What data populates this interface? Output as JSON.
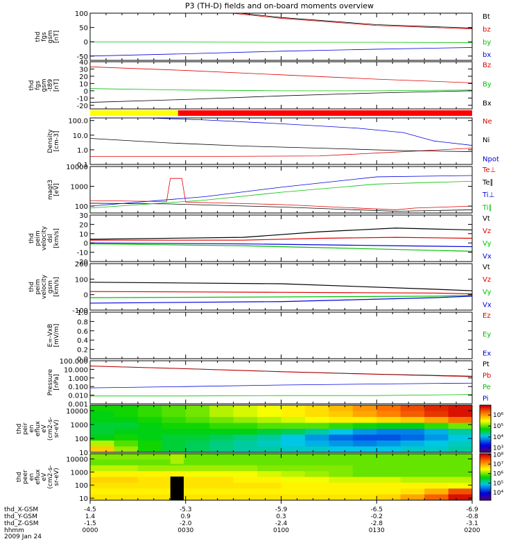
{
  "title": "P3 (TH-D) fields and on-board moments overview",
  "date": "2009 Jan 24",
  "time_axis": {
    "ticks": [
      "0000",
      "0030",
      "0100",
      "0130",
      "0200"
    ],
    "range_hhmm": [
      "0000",
      "0200"
    ]
  },
  "ephemeris": [
    {
      "label": "thd_X-GSM",
      "values": [
        "-4.5",
        "-5.3",
        "-5.9",
        "-6.5",
        "-6.9"
      ]
    },
    {
      "label": "thd_Y-GSM",
      "values": [
        "1.4",
        "0.9",
        "0.3",
        "-0.2",
        "-0.8"
      ]
    },
    {
      "label": "thd_Z-GSM",
      "values": [
        "-1.5",
        "-2.0",
        "-2.4",
        "-2.8",
        "-3.1"
      ]
    },
    {
      "label": "hhmm",
      "values": []
    }
  ],
  "colors": {
    "black": "#000000",
    "red": "#e00000",
    "green": "#00c000",
    "blue": "#0000e0"
  },
  "chart_data": [
    {
      "type": "line",
      "ylabel_lines": [
        "thd",
        "fgs",
        "gsm",
        "[nT]"
      ],
      "ylim": [
        -65,
        100
      ],
      "yticks": [
        -50,
        0,
        50,
        100
      ],
      "series": [
        {
          "name": "Bt",
          "color": "#000000",
          "x": [
            0,
            0.25,
            0.5,
            0.75,
            1.0
          ],
          "y": [
            160,
            120,
            85,
            60,
            48
          ]
        },
        {
          "name": "bz",
          "color": "#e00000",
          "x": [
            0,
            0.25,
            0.5,
            0.75,
            1.0
          ],
          "y": [
            155,
            117,
            82,
            57,
            45
          ]
        },
        {
          "name": "by",
          "color": "#00c000",
          "x": [
            0,
            0.25,
            0.5,
            0.75,
            1.0
          ],
          "y": [
            -1,
            -1,
            -2,
            -2,
            -3
          ]
        },
        {
          "name": "bx",
          "color": "#0000e0",
          "x": [
            0,
            0.25,
            0.5,
            0.75,
            1.0
          ],
          "y": [
            -50,
            -42,
            -33,
            -26,
            -20
          ]
        }
      ]
    },
    {
      "type": "line",
      "ylabel_lines": [
        "thd",
        "fgs",
        "gsm",
        "-t89",
        "[nT]"
      ],
      "ylim": [
        -25,
        40
      ],
      "yticks": [
        -20,
        -10,
        0,
        10,
        20,
        30,
        40
      ],
      "series": [
        {
          "name": "Bz",
          "color": "#e00000",
          "x": [
            0,
            0.1,
            0.25,
            0.5,
            0.75,
            1.0
          ],
          "y": [
            33,
            31,
            28,
            22,
            16,
            11
          ]
        },
        {
          "name": "By",
          "color": "#00c000",
          "x": [
            0,
            0.25,
            0.5,
            0.75,
            1.0
          ],
          "y": [
            3,
            1,
            0,
            0,
            1
          ]
        },
        {
          "name": "Bx",
          "color": "#000000",
          "x": [
            0,
            0.25,
            0.5,
            0.75,
            1.0
          ],
          "y": [
            -16,
            -12,
            -7,
            -3,
            0
          ]
        }
      ]
    },
    {
      "type": "bar",
      "ylabel_lines": [],
      "segments": [
        {
          "x": [
            0,
            0.23
          ],
          "color": "#ffff00"
        },
        {
          "x": [
            0.23,
            1.0
          ],
          "color": "#ff0000"
        }
      ]
    },
    {
      "type": "line",
      "ylabel_lines": [
        "Density",
        "[cm-3]"
      ],
      "log": true,
      "ylim": [
        0.1,
        150
      ],
      "yticks": [
        0.1,
        1.0,
        10.0,
        100.0
      ],
      "ytick_labels": [
        "0.1",
        "1.0",
        "10.0",
        "100.0"
      ],
      "series": [
        {
          "name": "Ne",
          "color": "#e00000",
          "x": [
            0,
            0.3,
            0.6,
            0.8,
            0.9,
            1.0
          ],
          "y": [
            0.35,
            0.35,
            0.38,
            0.7,
            0.95,
            1.3
          ]
        },
        {
          "name": "Ni",
          "color": "#000000",
          "x": [
            0,
            0.2,
            0.4,
            0.6,
            0.8,
            1.0
          ],
          "y": [
            6,
            3,
            1.8,
            1.3,
            0.9,
            0.75
          ]
        },
        {
          "name": "Npot",
          "color": "#0000e0",
          "x": [
            0.15,
            0.3,
            0.5,
            0.7,
            0.82,
            0.9,
            1.0
          ],
          "y": [
            150,
            110,
            60,
            30,
            15,
            4,
            2
          ]
        }
      ]
    },
    {
      "type": "line",
      "ylabel_lines": [
        "magt3",
        "[eV]"
      ],
      "log": true,
      "ylim": [
        45,
        10000
      ],
      "yticks": [
        100,
        1000,
        10000
      ],
      "ytick_labels": [
        "100",
        "1000",
        "10000"
      ],
      "series": [
        {
          "name": "Te⊥",
          "color": "#e00000",
          "x": [
            0,
            0.2,
            0.21,
            0.24,
            0.25,
            0.5,
            0.8,
            0.85,
            1.0
          ],
          "y": [
            190,
            170,
            2500,
            2500,
            160,
            120,
            65,
            80,
            100
          ]
        },
        {
          "name": "Te∥",
          "color": "#000000",
          "x": [
            0,
            0.2,
            0.5,
            0.8,
            1.0
          ],
          "y": [
            140,
            130,
            90,
            55,
            65
          ]
        },
        {
          "name": "Ti⊥",
          "color": "#0000e0",
          "x": [
            0,
            0.3,
            0.5,
            0.75,
            1.0
          ],
          "y": [
            100,
            300,
            900,
            3000,
            3500
          ]
        },
        {
          "name": "Ti∥",
          "color": "#00c000",
          "x": [
            0,
            0.3,
            0.5,
            0.75,
            1.0
          ],
          "y": [
            80,
            200,
            500,
            1300,
            1800
          ]
        }
      ]
    },
    {
      "type": "line",
      "ylabel_lines": [
        "thd",
        "peim",
        "velocity",
        "dsl",
        "[km/s]"
      ],
      "ylim": [
        -20,
        30
      ],
      "yticks": [
        -20,
        -10,
        0,
        10,
        20,
        30
      ],
      "series": [
        {
          "name": "Vt",
          "color": "#000000",
          "x": [
            0,
            0.4,
            0.6,
            0.8,
            1.0
          ],
          "y": [
            4,
            6,
            12,
            16,
            14
          ]
        },
        {
          "name": "Vz",
          "color": "#e00000",
          "x": [
            0,
            0.4,
            0.6,
            0.8,
            1.0
          ],
          "y": [
            3,
            3,
            5,
            6,
            5
          ]
        },
        {
          "name": "Vy",
          "color": "#00c000",
          "x": [
            0,
            0.4,
            0.6,
            0.8,
            1.0
          ],
          "y": [
            -1,
            -3,
            -5,
            -7,
            -9
          ]
        },
        {
          "name": "Vx",
          "color": "#0000e0",
          "x": [
            0,
            0.4,
            0.6,
            0.8,
            1.0
          ],
          "y": [
            0,
            -1,
            -2,
            -3,
            -4
          ]
        }
      ]
    },
    {
      "type": "line",
      "ylabel_lines": [
        "thd",
        "peim",
        "velocity",
        "gsm",
        "[km/s]"
      ],
      "ylim": [
        -100,
        200
      ],
      "yticks": [
        -100,
        0,
        100,
        200
      ],
      "series": [
        {
          "name": "Vt",
          "color": "#000000",
          "x": [
            0,
            0.5,
            0.9,
            1.0
          ],
          "y": [
            80,
            70,
            35,
            25
          ]
        },
        {
          "name": "Vz",
          "color": "#e00000",
          "x": [
            0,
            0.5,
            0.9,
            1.0
          ],
          "y": [
            20,
            15,
            10,
            5
          ]
        },
        {
          "name": "Vy",
          "color": "#00c000",
          "x": [
            0,
            0.5,
            0.9,
            1.0
          ],
          "y": [
            -20,
            -15,
            -10,
            -5
          ]
        },
        {
          "name": "Vx",
          "color": "#0000e0",
          "x": [
            0,
            0.5,
            0.9,
            1.0
          ],
          "y": [
            -55,
            -45,
            -20,
            -10
          ]
        }
      ]
    },
    {
      "type": "line",
      "ylabel_lines": [
        "E=-VxB",
        "[mV/m]"
      ],
      "ylim": [
        0.0,
        1.0
      ],
      "yticks": [
        0.0,
        0.2,
        0.4,
        0.6,
        0.8,
        1.0
      ],
      "ytick_labels": [
        "0.0",
        "0.2",
        "0.4",
        "0.6",
        "0.8",
        "1.0"
      ],
      "series": [
        {
          "name": "Ez",
          "color": "#e00000",
          "x": [],
          "y": []
        },
        {
          "name": "Ey",
          "color": "#00c000",
          "x": [],
          "y": []
        },
        {
          "name": "Ex",
          "color": "#0000e0",
          "x": [],
          "y": []
        }
      ]
    },
    {
      "type": "line",
      "ylabel_lines": [
        "Pressure",
        "[nPa]"
      ],
      "log": true,
      "ylim": [
        0.001,
        100
      ],
      "yticks": [
        0.001,
        0.01,
        0.1,
        1,
        10,
        100
      ],
      "ytick_labels": [
        "0.001",
        "0.010",
        "0.100",
        "1.000",
        "10.000",
        "100.000"
      ],
      "series": [
        {
          "name": "Pt",
          "color": "#000000",
          "x": [
            0,
            0.25,
            0.5,
            0.75,
            1.0
          ],
          "y": [
            25,
            12,
            5.5,
            2.8,
            1.6
          ]
        },
        {
          "name": "Pb",
          "color": "#e00000",
          "x": [
            0,
            0.25,
            0.5,
            0.75,
            1.0
          ],
          "y": [
            24,
            11.5,
            5.2,
            2.6,
            1.4
          ]
        },
        {
          "name": "Pe",
          "color": "#00c000",
          "x": [
            0,
            0.25,
            0.5,
            0.75,
            1.0
          ],
          "y": [
            0.008,
            0.008,
            0.009,
            0.009,
            0.012
          ]
        },
        {
          "name": "Pi",
          "color": "#0000e0",
          "x": [
            0,
            0.25,
            0.5,
            0.75,
            1.0
          ],
          "y": [
            0.07,
            0.1,
            0.15,
            0.2,
            0.25
          ]
        }
      ]
    },
    {
      "type": "heatmap",
      "ylabel_lines": [
        "thd",
        "peir",
        "en",
        "eflux",
        "eV",
        "(cm2-s-",
        "sr-eV)"
      ],
      "log": true,
      "ylim": [
        10,
        25000
      ],
      "yticks": [
        10,
        100,
        1000,
        10000
      ],
      "ytick_labels": [
        "10",
        "100",
        "1000",
        "10000"
      ],
      "colorbar": {
        "ticks": [
          "10³",
          "10⁴",
          "10⁵",
          "10⁶"
        ],
        "range_exp": [
          2.6,
          6.9
        ]
      },
      "rows": [
        [
          4.8,
          4.8,
          4.9,
          5.0,
          5.1,
          5.3,
          5.4,
          5.5,
          5.6,
          5.7,
          5.9,
          6.1,
          6.3,
          6.5,
          6.7,
          6.8
        ],
        [
          4.7,
          4.8,
          4.9,
          5.0,
          5.1,
          5.3,
          5.4,
          5.5,
          5.6,
          5.7,
          5.8,
          6.0,
          6.2,
          6.4,
          6.6,
          6.8
        ],
        [
          4.7,
          4.7,
          4.8,
          4.9,
          5.0,
          5.1,
          5.2,
          5.3,
          5.4,
          5.5,
          5.6,
          5.6,
          5.7,
          5.8,
          6.0,
          6.3
        ],
        [
          4.6,
          4.6,
          4.7,
          4.8,
          4.8,
          4.9,
          4.9,
          5.0,
          5.0,
          5.0,
          4.9,
          4.8,
          4.7,
          4.7,
          4.9,
          5.1
        ],
        [
          4.6,
          4.7,
          4.7,
          4.7,
          4.7,
          4.7,
          4.7,
          4.6,
          4.5,
          4.3,
          4.1,
          3.9,
          3.8,
          3.8,
          4.0,
          4.3
        ],
        [
          4.7,
          4.8,
          4.7,
          4.6,
          4.6,
          4.5,
          4.4,
          4.3,
          4.1,
          3.9,
          3.7,
          3.6,
          3.6,
          3.7,
          3.9,
          4.1
        ],
        [
          5.3,
          5.0,
          4.8,
          4.6,
          4.5,
          4.4,
          4.3,
          4.2,
          4.1,
          4.0,
          3.9,
          3.8,
          3.9,
          4.0,
          4.1,
          4.2
        ],
        [
          5.8,
          5.2,
          4.8,
          4.6,
          4.5,
          4.4,
          4.3,
          4.3,
          4.2,
          4.2,
          4.1,
          4.1,
          4.1,
          4.2,
          4.2,
          4.3
        ]
      ]
    },
    {
      "type": "heatmap",
      "ylabel_lines": [
        "thd",
        "peer",
        "en",
        "eflux",
        "eV",
        "(cm2-s-",
        "sr-eV)"
      ],
      "log": true,
      "ylim": [
        7,
        25000
      ],
      "yticks": [
        10,
        100,
        1000,
        10000
      ],
      "ytick_labels": [
        "10",
        "100",
        "1000",
        "10000"
      ],
      "colorbar": {
        "ticks": [
          "10⁴",
          "10⁵",
          "10⁶",
          "10⁷",
          "10⁸"
        ],
        "range_exp": [
          3.2,
          8.1
        ]
      },
      "gap": {
        "x": [
          0.21,
          0.245
        ],
        "ylim": [
          7,
          450
        ]
      },
      "rows": [
        [
          6.1,
          6.1,
          6.1,
          6.1,
          6.0,
          6.0,
          6.0,
          6.0,
          6.0,
          6.0,
          6.0,
          6.0,
          6.0,
          6.0,
          6.0,
          6.0
        ],
        [
          6.0,
          6.0,
          6.0,
          6.0,
          6.0,
          6.0,
          6.0,
          6.0,
          6.0,
          6.0,
          6.0,
          6.0,
          6.0,
          6.0,
          6.0,
          6.0
        ],
        [
          6.3,
          6.3,
          6.2,
          6.2,
          6.2,
          6.2,
          6.2,
          6.1,
          6.1,
          6.1,
          6.1,
          6.0,
          6.0,
          6.0,
          6.0,
          6.0
        ],
        [
          6.6,
          6.6,
          6.6,
          6.6,
          6.5,
          6.5,
          6.5,
          6.4,
          6.3,
          6.2,
          6.1,
          6.0,
          6.0,
          6.0,
          6.0,
          6.0
        ],
        [
          6.8,
          6.8,
          6.7,
          6.7,
          6.7,
          6.7,
          6.6,
          6.6,
          6.5,
          6.5,
          6.4,
          6.4,
          6.4,
          6.3,
          6.3,
          6.3
        ],
        [
          6.7,
          6.7,
          6.7,
          6.7,
          6.7,
          6.7,
          6.7,
          6.7,
          6.6,
          6.6,
          6.6,
          6.6,
          6.6,
          6.6,
          6.6,
          6.5
        ],
        [
          6.6,
          6.6,
          6.6,
          6.6,
          6.6,
          6.6,
          6.6,
          6.6,
          6.6,
          6.6,
          6.6,
          6.6,
          6.6,
          6.7,
          7.0,
          7.6
        ],
        [
          6.7,
          6.7,
          6.7,
          6.7,
          6.7,
          6.7,
          6.7,
          6.7,
          6.7,
          6.7,
          6.7,
          6.7,
          6.8,
          7.1,
          7.5,
          8.0
        ]
      ]
    }
  ]
}
